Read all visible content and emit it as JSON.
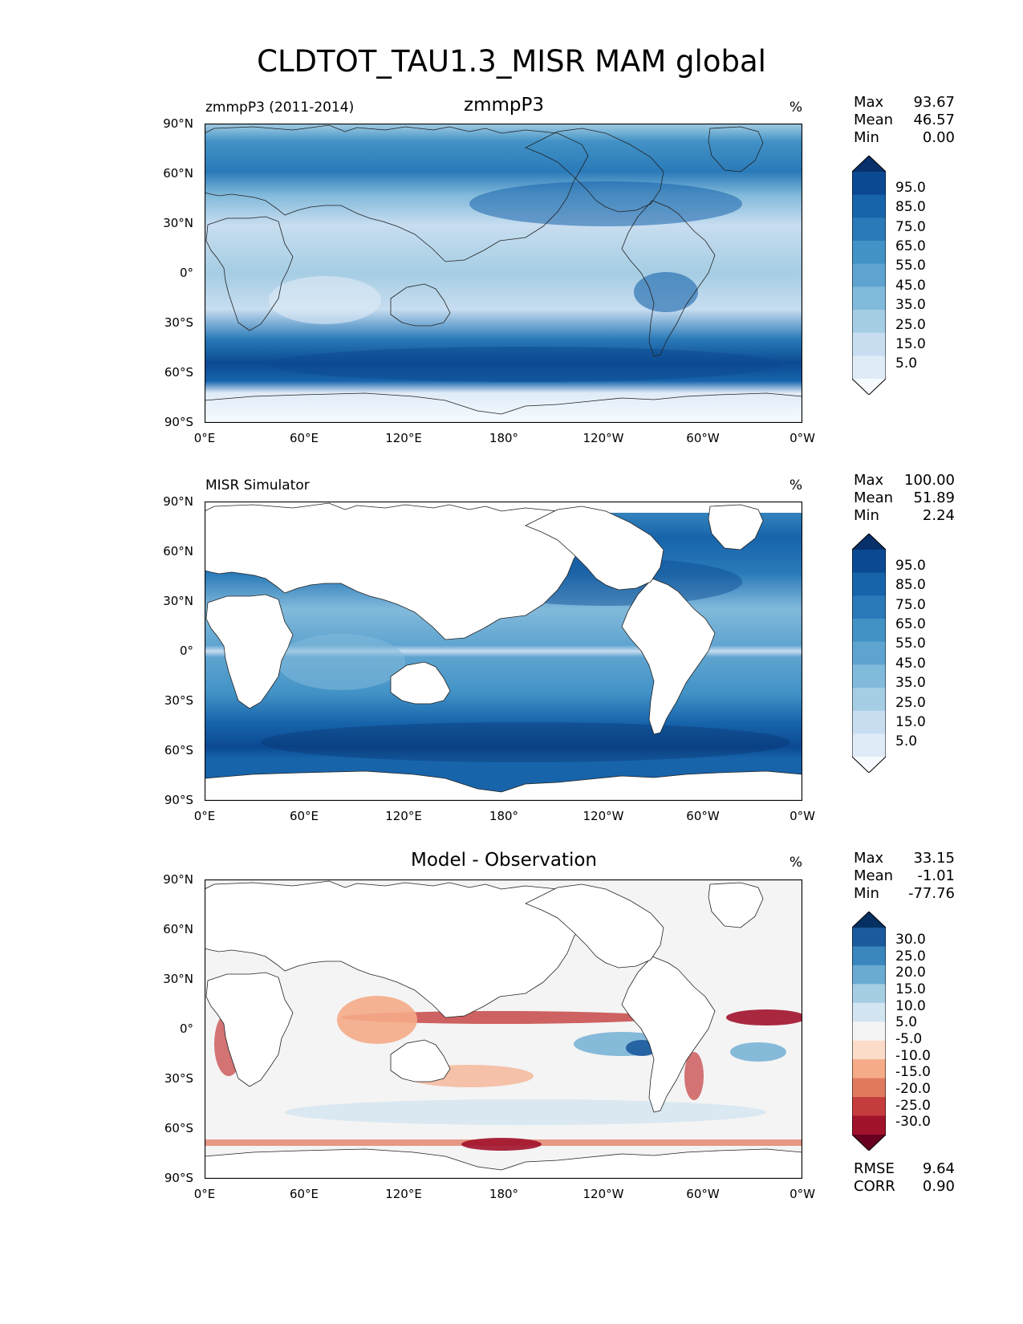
{
  "figure_title": "CLDTOT_TAU1.3_MISR MAM global",
  "axes": {
    "x_ticks": [
      "0°E",
      "60°E",
      "120°E",
      "180°",
      "120°W",
      "60°W",
      "0°W"
    ],
    "y_ticks": [
      "90°N",
      "60°N",
      "30°N",
      "0°",
      "30°S",
      "60°S",
      "90°S"
    ]
  },
  "panels": {
    "model": {
      "left_title": "zmmpP3 (2011-2014)",
      "center_title": "zmmpP3",
      "right_title": "%",
      "stats": {
        "max_label": "Max",
        "max": "93.67",
        "mean_label": "Mean",
        "mean": "46.57",
        "min_label": "Min",
        "min": "0.00"
      }
    },
    "obs": {
      "left_title": "MISR Simulator",
      "right_title": "%",
      "stats": {
        "max_label": "Max",
        "max": "100.00",
        "mean_label": "Mean",
        "mean": "51.89",
        "min_label": "Min",
        "min": "2.24"
      }
    },
    "diff": {
      "center_title": "Model - Observation",
      "right_title": "%",
      "stats": {
        "max_label": "Max",
        "max": "33.15",
        "mean_label": "Mean",
        "mean": "-1.01",
        "min_label": "Min",
        "min": "-77.76"
      },
      "metrics": {
        "rmse_label": "RMSE",
        "rmse": "9.64",
        "corr_label": "CORR",
        "corr": "0.90"
      }
    }
  },
  "colorbars": {
    "cloud_levels": [
      "95.0",
      "85.0",
      "75.0",
      "65.0",
      "55.0",
      "45.0",
      "35.0",
      "25.0",
      "15.0",
      "5.0"
    ],
    "cloud_colors": [
      "#08306b",
      "#0b4a92",
      "#1764ab",
      "#2a7ab9",
      "#4292c6",
      "#5fa4d0",
      "#82badb",
      "#a5cde3",
      "#c8ddf0",
      "#dfebf7",
      "#f7fbff"
    ],
    "diff_levels": [
      "30.0",
      "25.0",
      "20.0",
      "15.0",
      "10.0",
      "5.0",
      "-5.0",
      "-10.0",
      "-15.0",
      "-20.0",
      "-25.0",
      "-30.0"
    ],
    "diff_colors": [
      "#053061",
      "#1b5a9c",
      "#3a87bd",
      "#6aabd2",
      "#a6cee3",
      "#d3e5f0",
      "#f4f4f4",
      "#fbdcc8",
      "#f5ab88",
      "#e07a5f",
      "#c43c3c",
      "#a1122b",
      "#67001f"
    ]
  },
  "chart_data": [
    {
      "type": "heatmap",
      "title": "zmmpP3",
      "units": "%",
      "x_range_deg_east": [
        0,
        360
      ],
      "y_range_deg": [
        -90,
        90
      ],
      "levels": [
        5,
        15,
        25,
        35,
        45,
        55,
        65,
        75,
        85,
        95
      ],
      "zonal_mean_profile": {
        "lat": [
          80,
          60,
          45,
          30,
          15,
          0,
          -15,
          -30,
          -45,
          -60,
          -75,
          -85
        ],
        "value": [
          55,
          75,
          70,
          35,
          30,
          40,
          30,
          35,
          80,
          85,
          20,
          5
        ]
      },
      "stats": {
        "max": 93.67,
        "mean": 46.57,
        "min": 0.0
      }
    },
    {
      "type": "heatmap",
      "title": "MISR Simulator",
      "units": "%",
      "x_range_deg_east": [
        0,
        360
      ],
      "y_range_deg": [
        -90,
        90
      ],
      "levels": [
        5,
        15,
        25,
        35,
        45,
        55,
        65,
        75,
        85,
        95
      ],
      "zonal_mean_profile": {
        "lat": [
          65,
          45,
          30,
          15,
          0,
          -15,
          -30,
          -45,
          -60
        ],
        "value": [
          80,
          75,
          45,
          40,
          45,
          35,
          50,
          80,
          85
        ]
      },
      "stats": {
        "max": 100.0,
        "mean": 51.89,
        "min": 2.24
      }
    },
    {
      "type": "heatmap",
      "title": "Model - Observation",
      "units": "%",
      "x_range_deg_east": [
        0,
        360
      ],
      "y_range_deg": [
        -90,
        90
      ],
      "levels": [
        -30,
        -25,
        -20,
        -15,
        -10,
        -5,
        5,
        10,
        15,
        20,
        25,
        30
      ],
      "stats": {
        "max": 33.15,
        "mean": -1.01,
        "min": -77.76,
        "rmse": 9.64,
        "corr": 0.9
      }
    }
  ]
}
